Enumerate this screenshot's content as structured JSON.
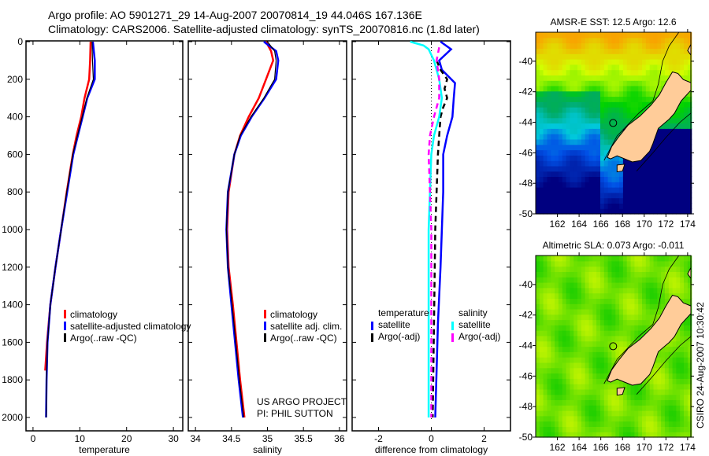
{
  "header": {
    "line1": "Argo profile: AO 5901271_29 14-Aug-2007 20070814_19 44.046S 167.136E",
    "line2": "Climatology: CARS2006. Satellite-adjusted climatology: synTS_20070816.nc (1.8d later)"
  },
  "credits": {
    "project": "US ARGO PROJECT",
    "pi": "PI: PHIL SUTTON",
    "stamp": "CSIRO 24-Aug-2007 10:30:42"
  },
  "chart_data": [
    {
      "type": "line",
      "xlabel": "temperature",
      "ylabel": "",
      "xlim": [
        -1.5,
        32
      ],
      "ylim": [
        2050,
        -20
      ],
      "xticks": [
        "0",
        "10",
        "20",
        "30"
      ],
      "xtick_values": [
        0,
        10,
        20,
        30
      ],
      "yticks": [
        "0",
        "200",
        "400",
        "600",
        "800",
        "1000",
        "1200",
        "1400",
        "1600",
        "1800",
        "2000"
      ],
      "ytick_values": [
        0,
        200,
        400,
        600,
        800,
        1000,
        1200,
        1400,
        1600,
        1800,
        2000
      ],
      "legend": [
        "climatology",
        "satellite-adjusted climatology",
        "Argo(..raw -QC)"
      ],
      "series": [
        {
          "name": "climatology",
          "color": "#ff0000",
          "depth": [
            0,
            100,
            200,
            300,
            400,
            500,
            600,
            800,
            1000,
            1200,
            1400,
            1600,
            1750
          ],
          "values": [
            12.3,
            12.2,
            12.0,
            11.0,
            10.3,
            9.3,
            8.5,
            7.2,
            6.0,
            4.8,
            3.7,
            3.0,
            2.6
          ]
        },
        {
          "name": "satellite-adjusted climatology",
          "color": "#0000ff",
          "depth": [
            0,
            50,
            100,
            200,
            300,
            400,
            500,
            600,
            800,
            1000,
            1200,
            1400,
            1600,
            1800,
            2000
          ],
          "values": [
            12.8,
            13.0,
            13.2,
            13.2,
            11.6,
            10.6,
            9.6,
            8.6,
            7.3,
            6.0,
            4.8,
            3.7,
            3.1,
            2.9,
            2.8
          ]
        },
        {
          "name": "Argo(..raw -QC)",
          "color": "#000000",
          "depth": [
            0,
            100,
            200,
            300,
            400,
            500,
            600,
            800,
            1000,
            1200,
            1400,
            1600,
            1800,
            2000
          ],
          "values": [
            12.6,
            12.7,
            12.9,
            11.5,
            10.5,
            9.5,
            8.5,
            7.2,
            6.0,
            4.8,
            3.7,
            3.1,
            2.9,
            2.8
          ]
        }
      ]
    },
    {
      "type": "line",
      "xlabel": "salinity",
      "xlim": [
        33.9,
        36.1
      ],
      "ylim": [
        2050,
        -20
      ],
      "xticks": [
        "34",
        "34.5",
        "35",
        "35.5",
        "36"
      ],
      "xtick_values": [
        34,
        34.5,
        35,
        35.5,
        36
      ],
      "legend": [
        "climatology",
        "satellite adj. clim.",
        "Argo(..raw -QC)"
      ],
      "series": [
        {
          "name": "climatology",
          "color": "#ff0000",
          "depth": [
            0,
            50,
            100,
            200,
            300,
            400,
            500,
            600,
            800,
            1000,
            1200,
            1400,
            1600,
            1800,
            2000
          ],
          "values": [
            34.98,
            35.05,
            35.08,
            34.98,
            34.88,
            34.74,
            34.62,
            34.54,
            34.46,
            34.44,
            34.46,
            34.52,
            34.57,
            34.62,
            34.68
          ]
        },
        {
          "name": "satellite adj. clim.",
          "color": "#0000ff",
          "depth": [
            0,
            50,
            100,
            200,
            300,
            400,
            500,
            600,
            800,
            1000,
            1200,
            1400,
            1600,
            1800,
            2000
          ],
          "values": [
            34.95,
            35.12,
            35.15,
            35.12,
            34.96,
            34.78,
            34.63,
            34.54,
            34.45,
            34.43,
            34.45,
            34.5,
            34.55,
            34.6,
            34.66
          ]
        },
        {
          "name": "Argo(..raw -QC)",
          "color": "#000000",
          "depth": [
            0,
            50,
            100,
            200,
            300,
            400,
            500,
            600,
            800,
            1000,
            1200,
            1400,
            1600,
            1800,
            2000
          ],
          "values": [
            35.0,
            35.1,
            35.12,
            35.1,
            34.95,
            34.77,
            34.62,
            34.54,
            34.45,
            34.43,
            34.45,
            34.51,
            34.56,
            34.61,
            34.67
          ]
        }
      ]
    },
    {
      "type": "line",
      "xlabel": "difference from climatology",
      "xlim": [
        -3,
        3
      ],
      "ylim": [
        2050,
        -20
      ],
      "xticks": [
        "-2",
        "0",
        "2"
      ],
      "xtick_values": [
        -2,
        0,
        2
      ],
      "legend_groups": [
        {
          "title": "temperature",
          "entries": [
            "satellite",
            "Argo(-adj)"
          ]
        },
        {
          "title": "salinity",
          "entries": [
            "satellite",
            "Argo(-adj)"
          ]
        }
      ],
      "series": [
        {
          "name": "temperature satellite",
          "color": "#0000ff",
          "dash": false,
          "depth": [
            0,
            40,
            100,
            150,
            220,
            300,
            400,
            500,
            600,
            800,
            1000,
            1200,
            1500,
            2000
          ],
          "values": [
            0.35,
            0.75,
            0.3,
            0.4,
            0.9,
            0.85,
            0.8,
            0.6,
            0.45,
            0.45,
            0.4,
            0.35,
            0.25,
            0.15
          ]
        },
        {
          "name": "temperature Argo(-adj)",
          "color": "#000000",
          "dash": true,
          "depth": [
            100,
            150,
            200,
            250,
            300,
            350,
            400,
            500,
            600,
            800,
            1000,
            1500,
            2000
          ],
          "values": [
            0.2,
            0.35,
            0.6,
            0.5,
            0.6,
            0.45,
            0.35,
            0.3,
            0.25,
            0.2,
            0.15,
            0.1,
            0.05
          ]
        },
        {
          "name": "salinity satellite",
          "color": "#00ffff",
          "dash": false,
          "depth": [
            0,
            20,
            40,
            100,
            200,
            300,
            400,
            500,
            600,
            800,
            1000,
            1200,
            1500,
            2000
          ],
          "values": [
            -0.8,
            -0.3,
            -0.1,
            0.1,
            0.3,
            0.4,
            0.3,
            0.1,
            0.0,
            -0.05,
            -0.1,
            -0.1,
            -0.1,
            -0.1
          ]
        },
        {
          "name": "salinity Argo(-adj)",
          "color": "#ff00ff",
          "dash": true,
          "depth": [
            30,
            100,
            200,
            300,
            400,
            500,
            600,
            800,
            1000,
            1200,
            1500,
            2000
          ],
          "values": [
            0.3,
            0.2,
            0.3,
            0.3,
            0.1,
            -0.05,
            -0.1,
            -0.05,
            0.0,
            0.0,
            0.0,
            0.0
          ]
        }
      ]
    },
    {
      "type": "heatmap",
      "title": "AMSR-E SST: 12.5 Argo: 12.6",
      "xticks": [
        "162",
        "164",
        "166",
        "168",
        "170",
        "172",
        "174"
      ],
      "xtick_values": [
        162,
        164,
        166,
        168,
        170,
        172,
        174
      ],
      "yticks": [
        "-40",
        "-42",
        "-44",
        "-46",
        "-48",
        "-50"
      ],
      "ytick_values": [
        -40,
        -42,
        -44,
        -46,
        -48,
        -50
      ],
      "xlim": [
        160,
        174.3
      ],
      "ylim": [
        -50,
        -38.1
      ],
      "argo_position": {
        "lon": 167.136,
        "lat": -44.046
      }
    },
    {
      "type": "heatmap",
      "title": "Altimetric SLA: 0.073 Argo: -0.011",
      "xticks": [
        "162",
        "164",
        "166",
        "168",
        "170",
        "172",
        "174"
      ],
      "xtick_values": [
        162,
        164,
        166,
        168,
        170,
        172,
        174
      ],
      "yticks": [
        "-40",
        "-42",
        "-44",
        "-46",
        "-48",
        "-50"
      ],
      "ytick_values": [
        -40,
        -42,
        -44,
        -46,
        -48,
        -50
      ],
      "xlim": [
        160,
        174.3
      ],
      "ylim": [
        -50,
        -38.1
      ],
      "argo_position": {
        "lon": 167.136,
        "lat": -44.046
      }
    }
  ]
}
